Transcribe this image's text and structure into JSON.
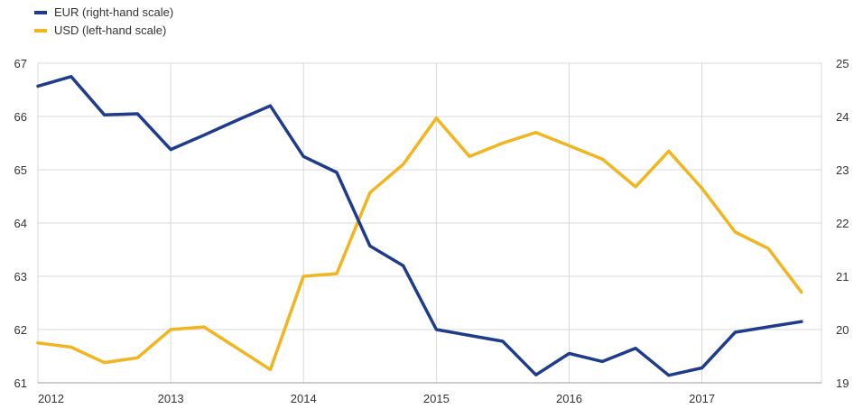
{
  "chart_data": {
    "type": "line",
    "title": "",
    "xlabel": "",
    "x_ticks": [
      "2012",
      "2013",
      "2014",
      "2015",
      "2016",
      "2017"
    ],
    "x_range": [
      2012,
      2017.9
    ],
    "left_axis": {
      "ylim": [
        61,
        67
      ],
      "ticks": [
        "61",
        "62",
        "63",
        "64",
        "65",
        "66",
        "67"
      ]
    },
    "right_axis": {
      "ylim": [
        19,
        25
      ],
      "ticks": [
        "19",
        "20",
        "21",
        "22",
        "23",
        "24",
        "25"
      ]
    },
    "grid": true,
    "legend_placement": "top-left",
    "series": [
      {
        "name": "EUR (right-hand scale)",
        "axis": "right",
        "color": "#1f3c8c",
        "x": [
          2012.0,
          2012.25,
          2012.5,
          2012.75,
          2013.0,
          2013.25,
          2013.5,
          2013.75,
          2014.0,
          2014.25,
          2014.5,
          2014.75,
          2015.0,
          2015.25,
          2015.5,
          2015.75,
          2016.0,
          2016.25,
          2016.5,
          2016.75,
          2017.0,
          2017.25,
          2017.5,
          2017.75
        ],
        "values": [
          24.57,
          24.75,
          24.03,
          24.05,
          23.38,
          23.65,
          23.93,
          24.2,
          23.25,
          22.95,
          21.57,
          21.2,
          20.0,
          19.89,
          19.78,
          19.15,
          19.55,
          19.4,
          19.65,
          19.14,
          19.28,
          19.95,
          20.05,
          20.15
        ]
      },
      {
        "name": "USD (left-hand scale)",
        "axis": "left",
        "color": "#f0b51f",
        "x": [
          2012.0,
          2012.25,
          2012.5,
          2012.75,
          2013.0,
          2013.25,
          2013.5,
          2013.75,
          2014.0,
          2014.25,
          2014.5,
          2014.75,
          2015.0,
          2015.25,
          2015.5,
          2015.75,
          2016.0,
          2016.25,
          2016.5,
          2016.75,
          2017.0,
          2017.25,
          2017.5,
          2017.75
        ],
        "values": [
          61.75,
          61.67,
          61.38,
          61.47,
          62.0,
          62.05,
          61.65,
          61.25,
          63.0,
          63.05,
          64.57,
          65.1,
          65.97,
          65.25,
          65.5,
          65.7,
          65.45,
          65.2,
          64.68,
          65.35,
          64.65,
          63.83,
          63.52,
          62.7
        ]
      }
    ]
  }
}
